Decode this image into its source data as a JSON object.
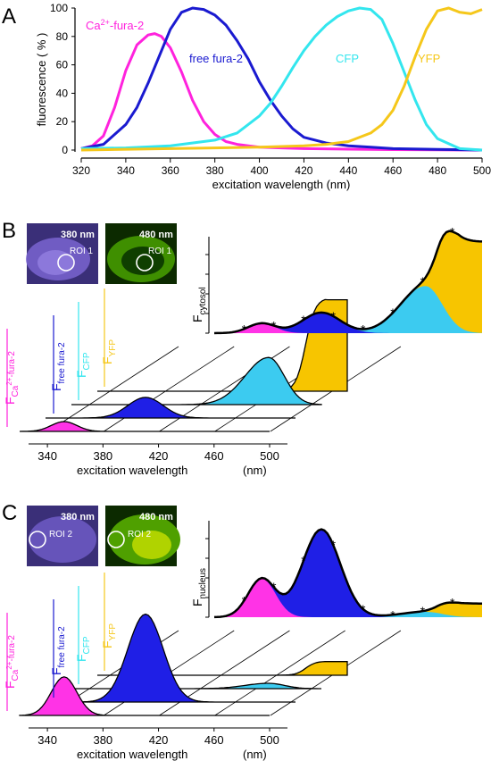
{
  "colors": {
    "ca": "#ff22dd",
    "free": "#1a1ad0",
    "cfp": "#33e6ee",
    "yfp": "#f5c71a",
    "cfp_fill": "#3ccbf0",
    "yfp_fill": "#f7c500",
    "free_fill": "#1f1fe6",
    "ca_fill": "#ff33e6",
    "envelope": "#000000"
  },
  "panels": {
    "A": {
      "letter": "A"
    },
    "B": {
      "letter": "B"
    },
    "C": {
      "letter": "C"
    }
  },
  "chart_data": [
    {
      "panel": "A",
      "type": "line",
      "xlabel": "excitation wavelength   (nm)",
      "ylabel": "fluorescence  ( % )",
      "xlim": [
        320,
        500
      ],
      "ylim": [
        0,
        100
      ],
      "xticks": [
        320,
        340,
        360,
        380,
        400,
        420,
        440,
        460,
        480,
        500
      ],
      "yticks": [
        0,
        20,
        40,
        60,
        80,
        100
      ],
      "labels": {
        "ca": {
          "pre": "Ca",
          "sup": "2+",
          "post": "-fura-2"
        },
        "free": "free fura-2",
        "cfp": "CFP",
        "yfp": "YFP"
      },
      "series": [
        {
          "key": "ca",
          "x": [
            320,
            325,
            330,
            335,
            340,
            345,
            350,
            353,
            356,
            360,
            365,
            370,
            375,
            380,
            385,
            390,
            395,
            400,
            410,
            420,
            440,
            460,
            480,
            500
          ],
          "values": [
            1,
            3,
            10,
            30,
            56,
            74,
            81,
            82,
            80,
            72,
            55,
            35,
            20,
            11,
            6,
            4,
            3,
            2,
            1.5,
            1,
            0.6,
            0.3,
            0.1,
            0
          ]
        },
        {
          "key": "free",
          "x": [
            320,
            330,
            340,
            345,
            350,
            355,
            360,
            365,
            370,
            375,
            380,
            385,
            390,
            395,
            400,
            405,
            410,
            415,
            420,
            430,
            440,
            450,
            460,
            480,
            500
          ],
          "values": [
            1,
            4,
            18,
            30,
            47,
            66,
            85,
            97,
            100,
            99,
            95,
            88,
            77,
            64,
            48,
            35,
            24,
            15,
            9,
            5,
            3,
            2,
            1,
            0.5,
            0
          ]
        },
        {
          "key": "cfp",
          "x": [
            320,
            340,
            360,
            380,
            390,
            400,
            405,
            410,
            415,
            420,
            425,
            430,
            435,
            440,
            445,
            450,
            455,
            460,
            465,
            470,
            475,
            480,
            490,
            500
          ],
          "values": [
            1,
            1.5,
            3,
            7,
            12,
            24,
            33,
            45,
            58,
            70,
            80,
            88,
            94,
            98,
            100,
            99,
            92,
            75,
            55,
            35,
            18,
            8,
            1,
            0
          ]
        },
        {
          "key": "yfp",
          "x": [
            320,
            360,
            400,
            420,
            430,
            440,
            450,
            455,
            460,
            465,
            470,
            475,
            480,
            485,
            490,
            495,
            500
          ],
          "values": [
            0,
            1,
            2,
            3,
            4,
            6,
            12,
            18,
            28,
            45,
            66,
            85,
            98,
            100,
            97,
            96,
            99
          ]
        }
      ]
    },
    {
      "panel": "B",
      "type": "area",
      "thumb_left": {
        "label": "380 nm",
        "roi": "ROI 1"
      },
      "thumb_right": {
        "label": "480 nm",
        "roi": "ROI 1"
      },
      "xlabel": "excitation wavelength",
      "xunit": "(nm)",
      "xticks": [
        340,
        380,
        420,
        460,
        500
      ],
      "total_label": {
        "main": "F",
        "sub": "cytosol"
      },
      "layer_labels": [
        {
          "key": "ca",
          "main": "F",
          "sub": "Ca",
          "sup": "2+",
          "post": "-fura-2"
        },
        {
          "key": "free",
          "main": "F",
          "sub": "free fura-2"
        },
        {
          "key": "cfp",
          "main": "F",
          "sub": "CFP"
        },
        {
          "key": "yfp",
          "main": "F",
          "sub": "YFP"
        }
      ],
      "layers": [
        {
          "key": "ca",
          "amplitude": 0.1
        },
        {
          "key": "free",
          "amplitude": 0.21
        },
        {
          "key": "cfp",
          "amplitude": 0.48
        },
        {
          "key": "yfp",
          "amplitude": 0.95
        }
      ],
      "measured_x": [
        340,
        360,
        380,
        400,
        420,
        440,
        460,
        480
      ]
    },
    {
      "panel": "C",
      "type": "area",
      "thumb_left": {
        "label": "380 nm",
        "roi": "ROI 2"
      },
      "thumb_right": {
        "label": "480 nm",
        "roi": "ROI 2"
      },
      "xlabel": "excitation wavelength",
      "xunit": "(nm)",
      "xticks": [
        340,
        380,
        420,
        460,
        500
      ],
      "total_label": {
        "main": "F",
        "sub": "nucleus"
      },
      "layer_labels": [
        {
          "key": "ca",
          "main": "F",
          "sub": "Ca",
          "sup": "2+",
          "post": "-fura-2"
        },
        {
          "key": "free",
          "main": "F",
          "sub": "free fura-2"
        },
        {
          "key": "cfp",
          "main": "F",
          "sub": "CFP"
        },
        {
          "key": "yfp",
          "main": "F",
          "sub": "YFP"
        }
      ],
      "layers": [
        {
          "key": "ca",
          "amplitude": 0.36
        },
        {
          "key": "free",
          "amplitude": 0.82
        },
        {
          "key": "cfp",
          "amplitude": 0.05
        },
        {
          "key": "yfp",
          "amplitude": 0.13
        }
      ],
      "measured_x": [
        340,
        360,
        380,
        400,
        420,
        440,
        460,
        480
      ]
    }
  ]
}
